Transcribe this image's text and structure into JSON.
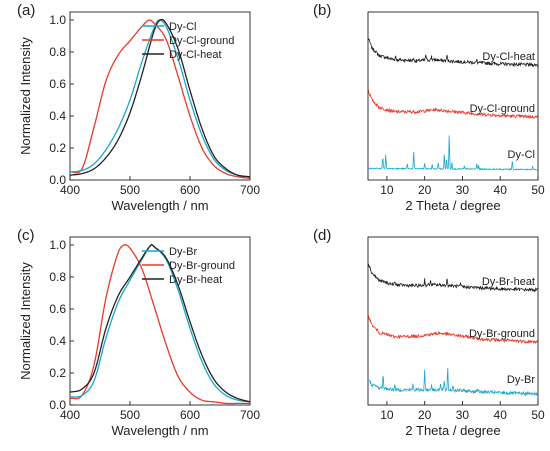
{
  "panels": [
    {
      "label": "(a)",
      "type": "line",
      "ylabel": "Normalized Intensity",
      "xlabel": "Wavelength / nm",
      "legend": [
        "Dy-Cl",
        "Dy-Cl-ground",
        "Dy-Cl-heat"
      ]
    },
    {
      "label": "(b)",
      "type": "line",
      "xlabel": "2 Theta / degree",
      "trace_labels": [
        "Dy-Cl-heat",
        "Dy-Cl-ground",
        "Dy-Cl"
      ]
    },
    {
      "label": "(c)",
      "type": "line",
      "ylabel": "Normalized Intensity",
      "xlabel": "Wavelength / nm",
      "legend": [
        "Dy-Br",
        "Dy-Br-ground",
        "Dy-Br-heat"
      ]
    },
    {
      "label": "(d)",
      "type": "line",
      "xlabel": "2 Theta / degree",
      "trace_labels": [
        "Dy-Br-heat",
        "Dy-Br-ground",
        "Dy-Br"
      ]
    }
  ],
  "colors": {
    "pristine": "#1aa6cc",
    "ground": "#e8392a",
    "heat": "#222222"
  },
  "chart_data": [
    {
      "panel": "(a)",
      "type": "line",
      "xlabel": "Wavelength / nm",
      "ylabel": "Normalized Intensity",
      "xlim": [
        400,
        700
      ],
      "ylim": [
        0.0,
        1.05
      ],
      "xticks": [
        400,
        500,
        600,
        700
      ],
      "yticks": [
        0.0,
        0.2,
        0.4,
        0.6,
        0.8,
        1.0
      ],
      "legend_position": "top-right",
      "series": [
        {
          "name": "Dy-Cl",
          "color": "#1aa6cc",
          "x": [
            400,
            420,
            440,
            460,
            480,
            500,
            520,
            540,
            548,
            560,
            580,
            600,
            620,
            640,
            660,
            680,
            700
          ],
          "y": [
            0.05,
            0.06,
            0.1,
            0.19,
            0.32,
            0.5,
            0.74,
            0.95,
            1.0,
            0.96,
            0.76,
            0.5,
            0.28,
            0.13,
            0.06,
            0.03,
            0.02
          ]
        },
        {
          "name": "Dy-Cl-ground",
          "color": "#e8392a",
          "x": [
            400,
            420,
            440,
            460,
            480,
            500,
            520,
            532,
            540,
            560,
            580,
            600,
            620,
            640,
            660,
            680,
            700
          ],
          "y": [
            0.05,
            0.07,
            0.33,
            0.62,
            0.78,
            0.87,
            0.96,
            1.0,
            0.98,
            0.88,
            0.65,
            0.4,
            0.2,
            0.09,
            0.04,
            0.02,
            0.01
          ]
        },
        {
          "name": "Dy-Cl-heat",
          "color": "#222222",
          "x": [
            400,
            420,
            440,
            460,
            480,
            500,
            520,
            540,
            550,
            560,
            580,
            600,
            620,
            640,
            660,
            680,
            700
          ],
          "y": [
            0.03,
            0.04,
            0.07,
            0.14,
            0.25,
            0.42,
            0.66,
            0.93,
            1.0,
            0.98,
            0.82,
            0.56,
            0.32,
            0.15,
            0.07,
            0.03,
            0.02
          ]
        }
      ]
    },
    {
      "panel": "(b)",
      "type": "line",
      "xlabel": "2 Theta / degree",
      "xlim": [
        5,
        50
      ],
      "xticks": [
        10,
        20,
        30,
        40,
        50
      ],
      "y_axis_ticks_labeled": false,
      "traces": [
        {
          "name": "Dy-Cl-heat",
          "color": "#222222",
          "offset": 2.0,
          "noise": 0.03,
          "shape": [
            [
              5,
              0.55
            ],
            [
              6,
              0.35
            ],
            [
              8,
              0.2
            ],
            [
              12,
              0.12
            ],
            [
              18,
              0.1
            ],
            [
              22,
              0.12
            ],
            [
              26,
              0.1
            ],
            [
              30,
              0.08
            ],
            [
              40,
              0.04
            ],
            [
              50,
              0.02
            ]
          ],
          "peaks": [
            [
              12.3,
              0.08
            ],
            [
              17.0,
              0.06
            ],
            [
              20.3,
              0.12
            ],
            [
              21.8,
              0.08
            ],
            [
              25.9,
              0.12
            ],
            [
              33.8,
              0.05
            ]
          ]
        },
        {
          "name": "Dy-Cl-ground",
          "color": "#e8392a",
          "offset": 1.0,
          "noise": 0.03,
          "shape": [
            [
              5,
              0.55
            ],
            [
              6,
              0.35
            ],
            [
              8,
              0.2
            ],
            [
              12,
              0.12
            ],
            [
              18,
              0.12
            ],
            [
              23,
              0.16
            ],
            [
              28,
              0.12
            ],
            [
              35,
              0.07
            ],
            [
              42,
              0.04
            ],
            [
              50,
              0.02
            ]
          ],
          "peaks": []
        },
        {
          "name": "Dy-Cl",
          "color": "#1aa6cc",
          "offset": 0.0,
          "noise": 0.01,
          "shape": [
            [
              5,
              0.03
            ],
            [
              50,
              0.01
            ]
          ],
          "peaks": [
            [
              8.9,
              0.22
            ],
            [
              9.7,
              0.28
            ],
            [
              15.4,
              0.1
            ],
            [
              17.1,
              0.33
            ],
            [
              20.0,
              0.1
            ],
            [
              22.0,
              0.08
            ],
            [
              23.6,
              0.12
            ],
            [
              25.2,
              0.3
            ],
            [
              25.8,
              0.2
            ],
            [
              26.5,
              0.66
            ],
            [
              27.2,
              0.12
            ],
            [
              30.5,
              0.06
            ],
            [
              33.8,
              0.1
            ],
            [
              34.3,
              0.06
            ],
            [
              43.2,
              0.18
            ],
            [
              48.6,
              0.05
            ]
          ]
        }
      ]
    },
    {
      "panel": "(c)",
      "type": "line",
      "xlabel": "Wavelength / nm",
      "ylabel": "Normalized Intensity",
      "xlim": [
        400,
        700
      ],
      "ylim": [
        0.0,
        1.05
      ],
      "xticks": [
        400,
        500,
        600,
        700
      ],
      "yticks": [
        0.0,
        0.2,
        0.4,
        0.6,
        0.8,
        1.0
      ],
      "legend_position": "top-right",
      "series": [
        {
          "name": "Dy-Br",
          "color": "#1aa6cc",
          "x": [
            400,
            420,
            440,
            460,
            480,
            500,
            520,
            535,
            540,
            560,
            580,
            600,
            620,
            640,
            660,
            680,
            700
          ],
          "y": [
            0.05,
            0.06,
            0.15,
            0.42,
            0.64,
            0.78,
            0.91,
            1.0,
            0.99,
            0.91,
            0.72,
            0.48,
            0.27,
            0.13,
            0.06,
            0.03,
            0.02
          ]
        },
        {
          "name": "Dy-Br-ground",
          "color": "#e8392a",
          "x": [
            400,
            420,
            440,
            460,
            480,
            490,
            500,
            520,
            540,
            560,
            580,
            600,
            620,
            640,
            660,
            680,
            700
          ],
          "y": [
            0.04,
            0.06,
            0.25,
            0.67,
            0.95,
            1.0,
            0.98,
            0.85,
            0.62,
            0.38,
            0.18,
            0.08,
            0.03,
            0.02,
            0.01,
            0.01,
            0.01
          ]
        },
        {
          "name": "Dy-Br-heat",
          "color": "#222222",
          "x": [
            400,
            420,
            440,
            460,
            480,
            500,
            520,
            535,
            540,
            560,
            580,
            600,
            620,
            640,
            660,
            680,
            700
          ],
          "y": [
            0.08,
            0.1,
            0.2,
            0.48,
            0.68,
            0.8,
            0.92,
            1.0,
            0.99,
            0.92,
            0.75,
            0.52,
            0.31,
            0.16,
            0.08,
            0.04,
            0.02
          ]
        }
      ]
    },
    {
      "panel": "(d)",
      "type": "line",
      "xlabel": "2 Theta / degree",
      "xlim": [
        5,
        50
      ],
      "xticks": [
        10,
        20,
        30,
        40,
        50
      ],
      "y_axis_ticks_labeled": false,
      "traces": [
        {
          "name": "Dy-Br-heat",
          "color": "#222222",
          "offset": 2.0,
          "noise": 0.03,
          "shape": [
            [
              5,
              0.55
            ],
            [
              6,
              0.35
            ],
            [
              8,
              0.2
            ],
            [
              12,
              0.12
            ],
            [
              18,
              0.1
            ],
            [
              22,
              0.12
            ],
            [
              26,
              0.11
            ],
            [
              30,
              0.08
            ],
            [
              40,
              0.04
            ],
            [
              50,
              0.02
            ]
          ],
          "peaks": [
            [
              12.1,
              0.06
            ],
            [
              20.0,
              0.12
            ],
            [
              21.5,
              0.08
            ],
            [
              25.9,
              0.14
            ],
            [
              29.5,
              0.05
            ]
          ]
        },
        {
          "name": "Dy-Br-ground",
          "color": "#e8392a",
          "offset": 1.0,
          "noise": 0.03,
          "shape": [
            [
              5,
              0.55
            ],
            [
              6,
              0.35
            ],
            [
              8,
              0.2
            ],
            [
              12,
              0.12
            ],
            [
              18,
              0.13
            ],
            [
              24,
              0.19
            ],
            [
              30,
              0.13
            ],
            [
              36,
              0.07
            ],
            [
              44,
              0.04
            ],
            [
              50,
              0.02
            ]
          ],
          "peaks": []
        },
        {
          "name": "Dy-Br",
          "color": "#1aa6cc",
          "offset": 0.0,
          "noise": 0.03,
          "shape": [
            [
              5,
              0.3
            ],
            [
              6,
              0.2
            ],
            [
              8,
              0.14
            ],
            [
              12,
              0.1
            ],
            [
              20,
              0.1
            ],
            [
              26,
              0.1
            ],
            [
              35,
              0.06
            ],
            [
              45,
              0.03
            ],
            [
              50,
              0.02
            ]
          ],
          "peaks": [
            [
              9.0,
              0.28
            ],
            [
              12.1,
              0.1
            ],
            [
              16.9,
              0.12
            ],
            [
              20.0,
              0.38
            ],
            [
              21.8,
              0.12
            ],
            [
              24.2,
              0.1
            ],
            [
              25.2,
              0.18
            ],
            [
              26.1,
              0.44
            ],
            [
              27.5,
              0.1
            ],
            [
              34.0,
              0.08
            ]
          ]
        }
      ]
    }
  ]
}
